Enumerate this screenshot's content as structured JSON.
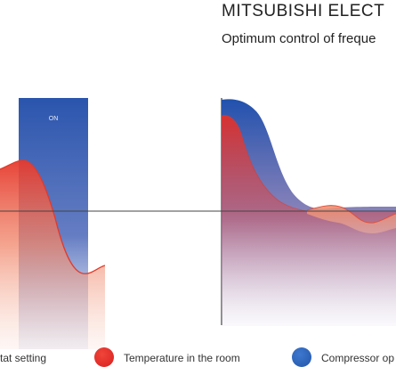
{
  "header": {
    "title": "MITSUBISHI ELECT",
    "subtitle": "Optimum control of freque"
  },
  "left_panel": {
    "on_label": "ON"
  },
  "legend": {
    "items": [
      {
        "label": "tat setting",
        "color": ""
      },
      {
        "label": "Temperature in the room",
        "color": "#e02828"
      },
      {
        "label": "Compressor op",
        "color": "#2e63b6"
      }
    ]
  },
  "colors": {
    "temperature": "#e53a2e",
    "compressor": "#2357b0",
    "setpoint_line": "#444444"
  }
}
